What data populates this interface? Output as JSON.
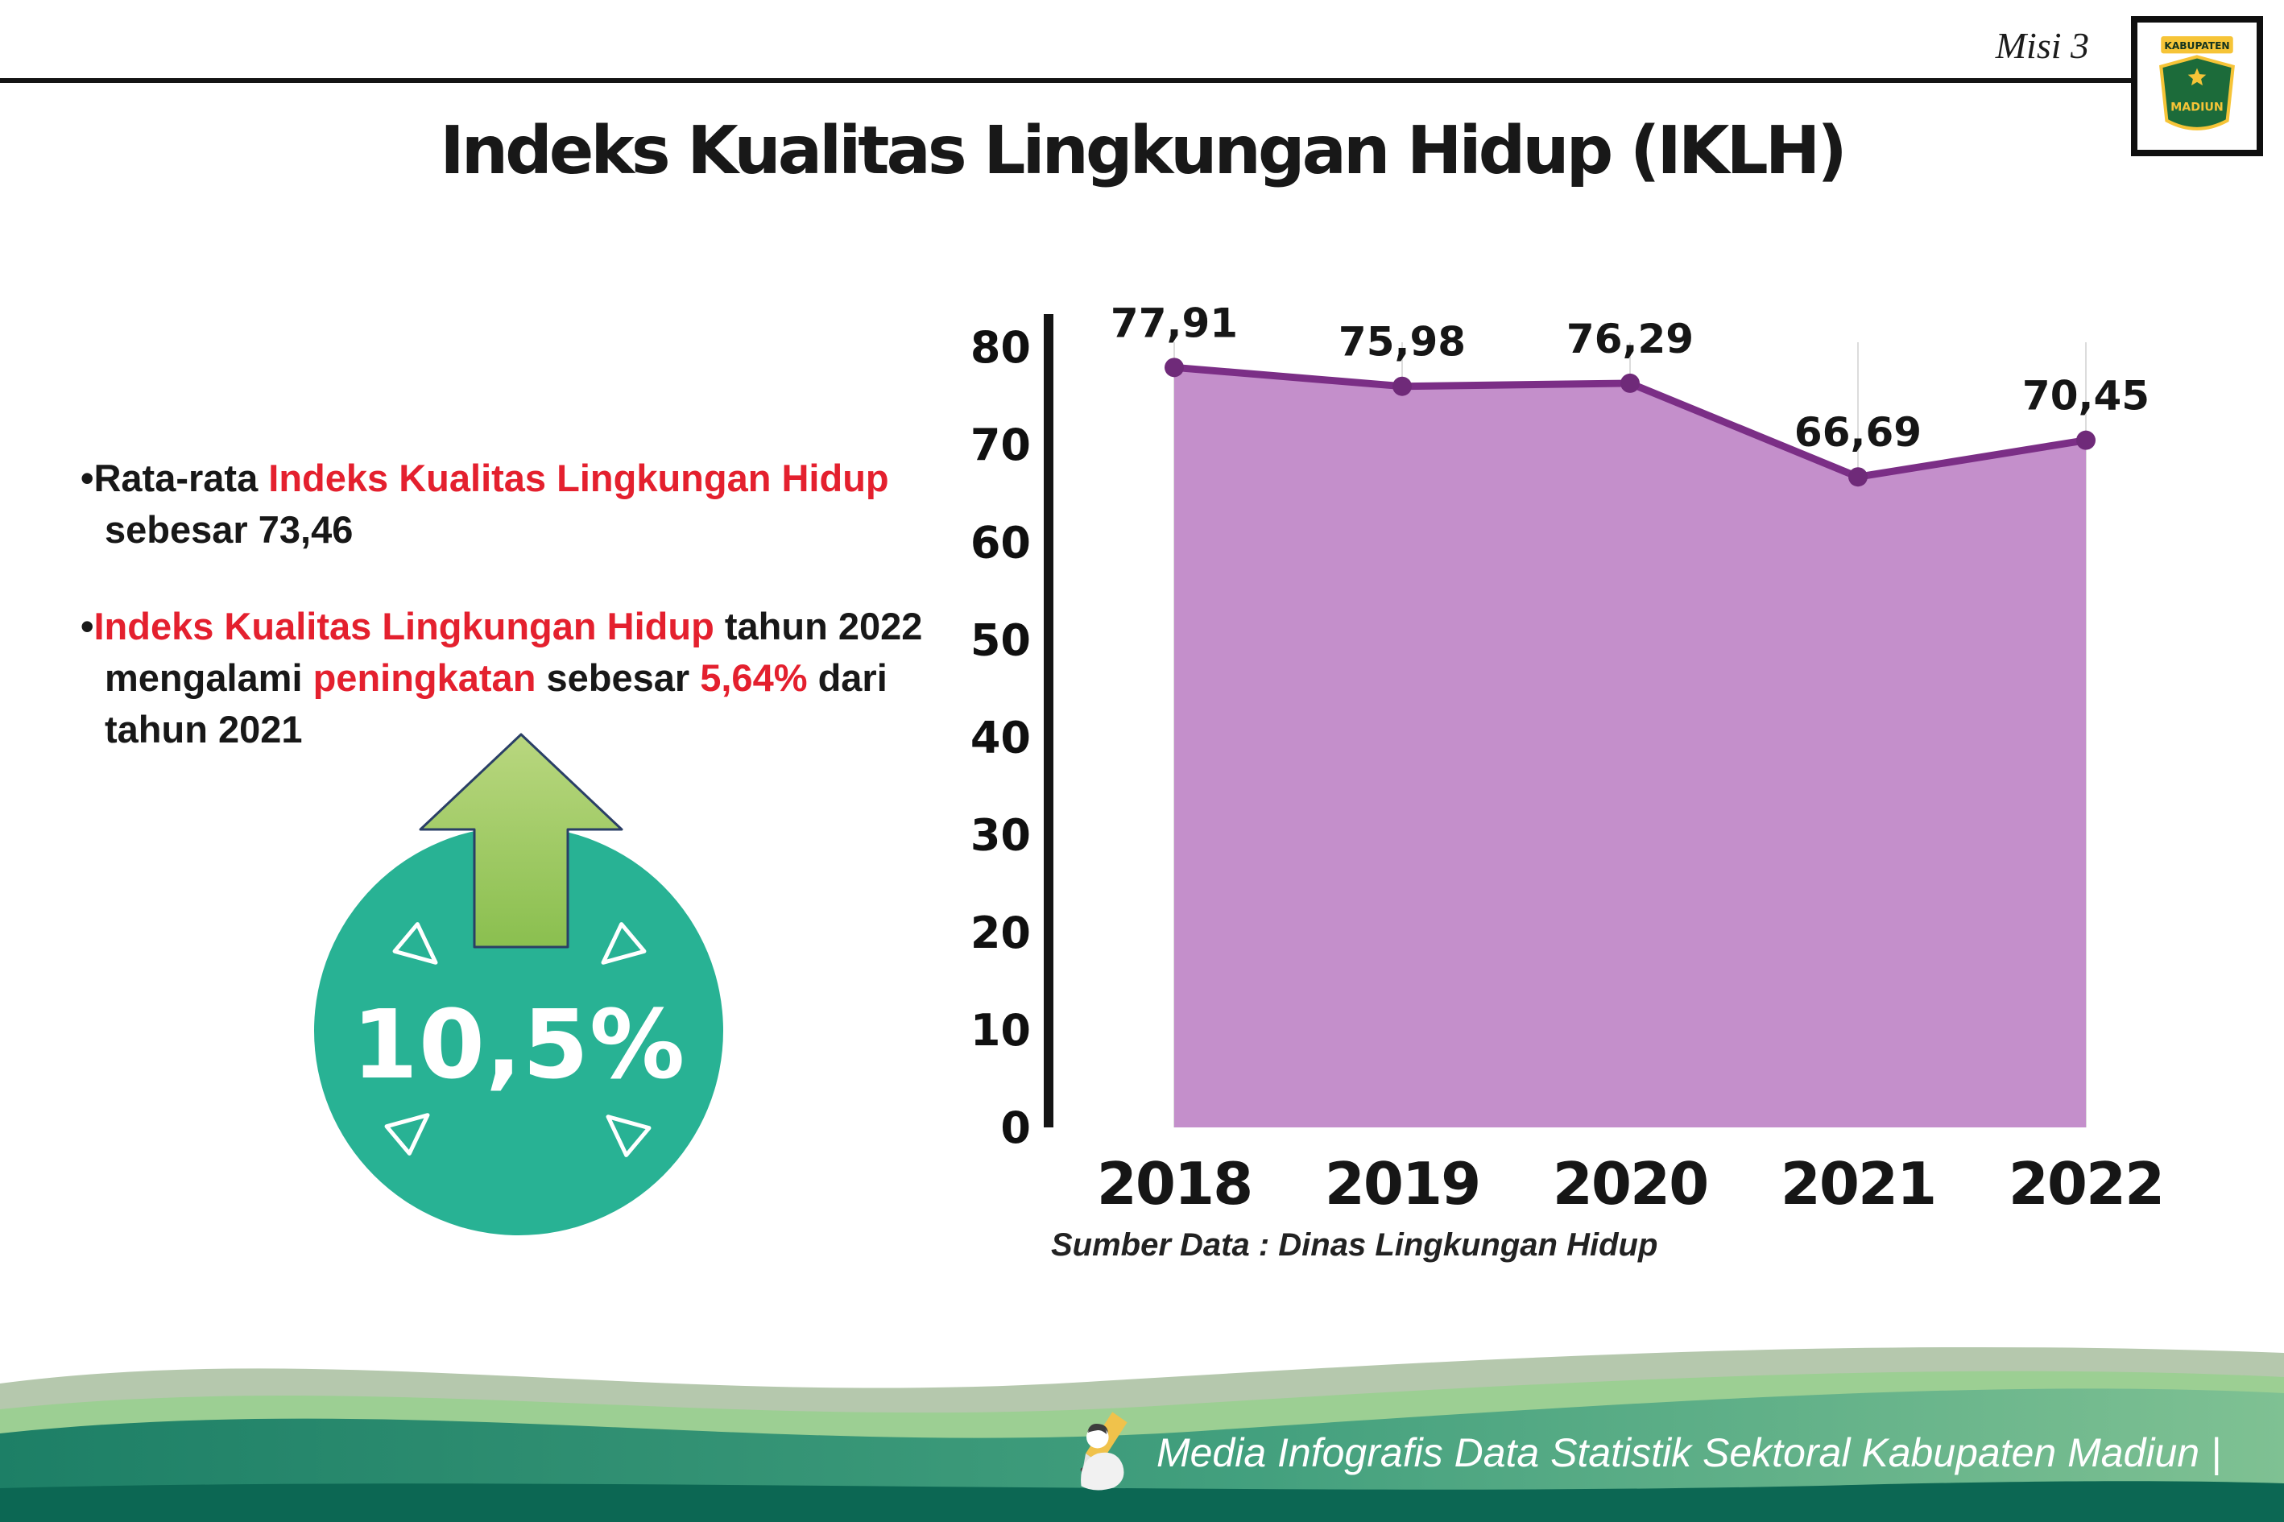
{
  "header": {
    "misi": "Misi 3",
    "title": "Indeks Kualitas Lingkungan Hidup (IKLH)"
  },
  "logo": {
    "line1": "KABUPATEN",
    "line2": "MADIUN"
  },
  "bullets": {
    "bullet_char": "•",
    "b1_l1_s1": "Rata-rata ",
    "b1_l1_s2": "Indeks Kualitas Lingkungan Hidup",
    "b1_l2": "sebesar 73,46",
    "b2_l1_s1": "Indeks Kualitas Lingkungan Hidup",
    "b2_l1_s2": " tahun 2022",
    "b2_l2_s1": "mengalami ",
    "b2_l2_s2": "peningkatan",
    "b2_l2_s3": " sebesar ",
    "b2_l2_s4": "5,64%",
    "b2_l2_s5": " dari",
    "b2_l3": "tahun 2021"
  },
  "badge": {
    "value": "10,5%",
    "circle_color": "#28b294",
    "arrow_color": "#9cc35c"
  },
  "chart_data": {
    "type": "area",
    "title": "",
    "categories": [
      "2018",
      "2019",
      "2020",
      "2021",
      "2022"
    ],
    "values": [
      77.91,
      75.98,
      76.29,
      66.69,
      70.45
    ],
    "labels": [
      "77,91",
      "75,98",
      "76,29",
      "66,69",
      "70,45"
    ],
    "ylim": [
      0,
      80
    ],
    "yticks": [
      0,
      10,
      20,
      30,
      40,
      50,
      60,
      70,
      80
    ],
    "grid": "vertical",
    "legend": "none",
    "fill_color": "#c48fcb",
    "line_color": "#7b2e86",
    "point_color": "#6f2a79",
    "axis_color": "#141414",
    "source": "Sumber Data : Dinas Lingkungan Hidup"
  },
  "footer": {
    "text": "Media Infografis Data Statistik Sektoral Kabupaten Madiun |",
    "band_dark": "#0c6753",
    "band_main_left": "#1d7f66",
    "band_main_right": "#7fc193",
    "band_sage": "#b5c8ad"
  }
}
